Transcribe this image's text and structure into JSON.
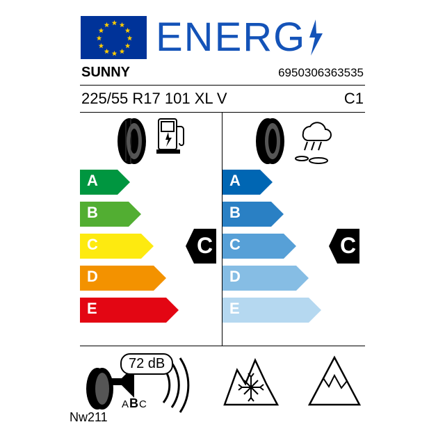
{
  "header": {
    "word": "ENERG",
    "word_color": "#1453b8",
    "flag_bg": "#003399",
    "star_color": "#FFCC00"
  },
  "row1": {
    "brand": "SUNNY",
    "barcode": "6950306363535"
  },
  "row2": {
    "size": "225/55 R17 101 XL V",
    "tyre_class": "C1"
  },
  "fuel": {
    "grades": [
      "A",
      "B",
      "C",
      "D",
      "E"
    ],
    "colors": [
      "#009640",
      "#52ae32",
      "#fdea10",
      "#f39200",
      "#e30613"
    ],
    "widths": [
      72,
      88,
      106,
      124,
      142
    ],
    "selected": "C",
    "selected_index": 2,
    "badge_color": "#000000"
  },
  "wet": {
    "grades": [
      "A",
      "B",
      "C",
      "D",
      "E"
    ],
    "colors": [
      "#0066b3",
      "#2a80c4",
      "#57a0d7",
      "#86bde4",
      "#b5d8f0"
    ],
    "widths": [
      72,
      88,
      106,
      124,
      142
    ],
    "selected": "C",
    "selected_index": 2,
    "badge_color": "#000000"
  },
  "noise": {
    "db_value": "72 dB",
    "class_letters": [
      "A",
      "B",
      "C"
    ],
    "selected_class": "B"
  },
  "model": "Nw211",
  "layout": {
    "arrow_height": 36,
    "arrow_gap": 10,
    "chart_top_icons_h": 76
  }
}
